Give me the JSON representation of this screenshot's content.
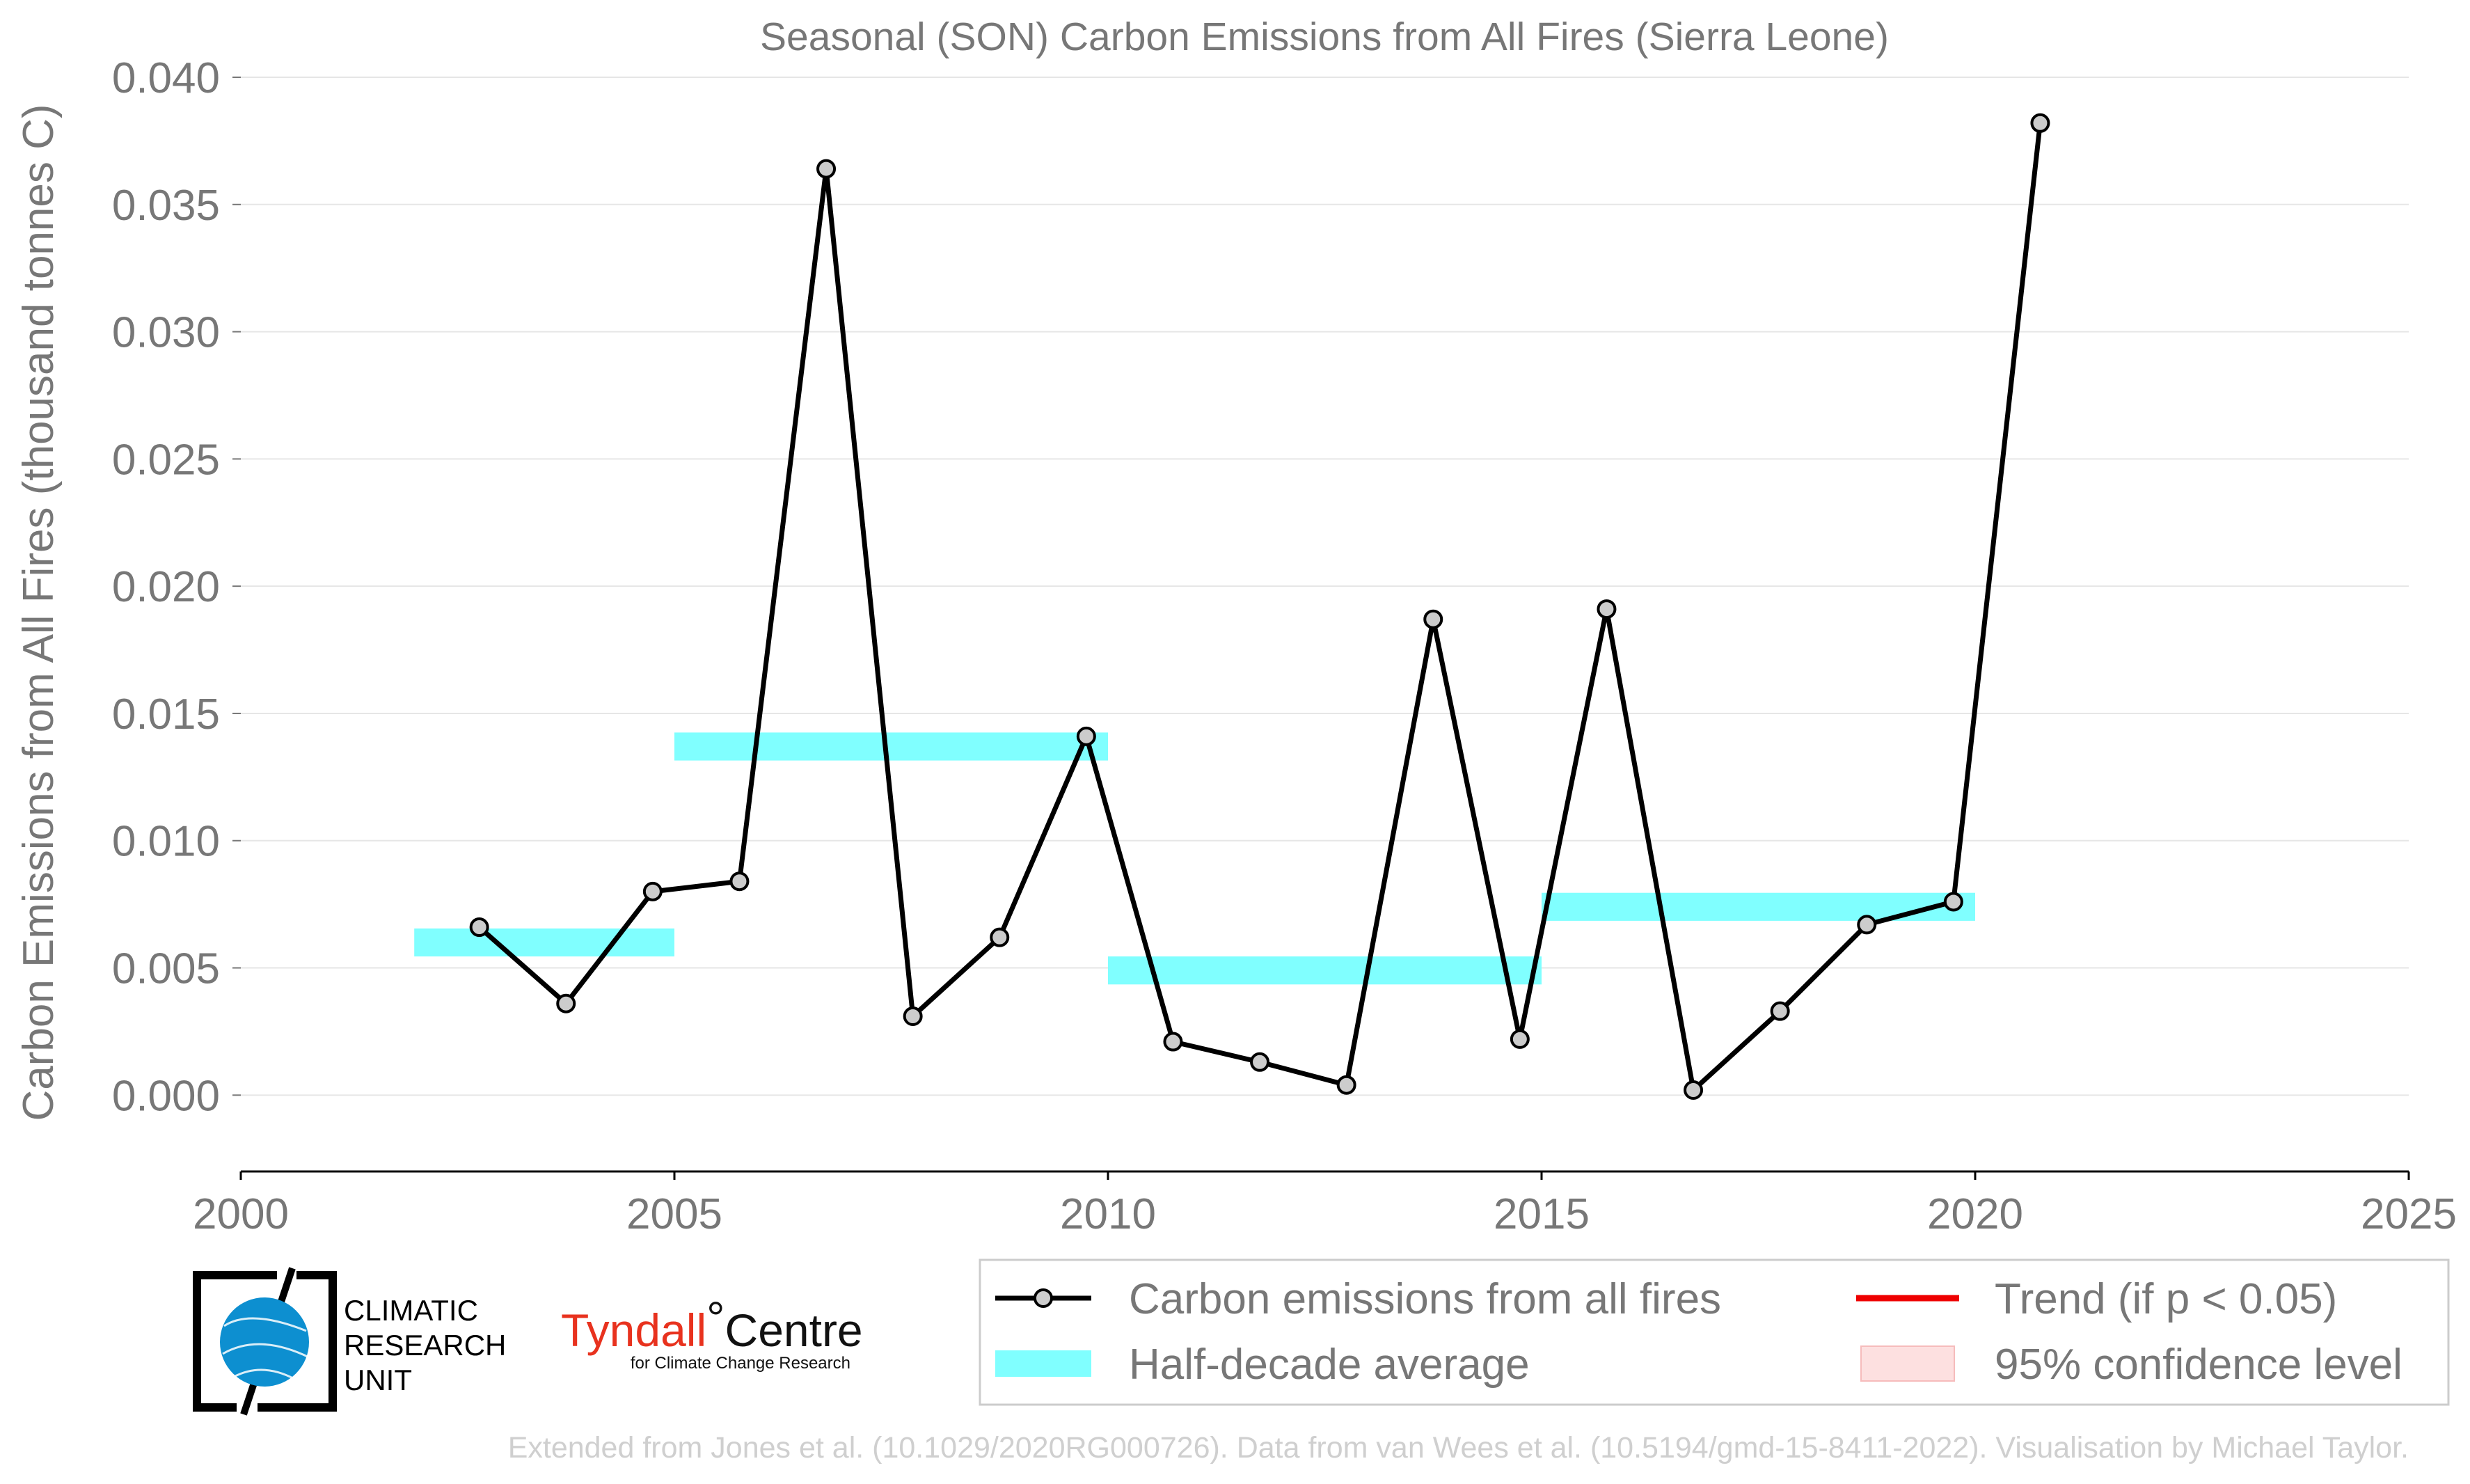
{
  "chart_data": {
    "type": "line",
    "title": "Seasonal (SON) Carbon Emissions from All Fires (Sierra Leone)",
    "xlabel": "",
    "ylabel": "Carbon Emissions from All Fires (thousand tonnes C)",
    "xlim": [
      2000,
      2025
    ],
    "ylim": [
      -0.003,
      0.04
    ],
    "x_ticks": [
      "2000",
      "2005",
      "2010",
      "2015",
      "2020",
      "2025"
    ],
    "x_tick_values": [
      2000,
      2005,
      2010,
      2015,
      2020,
      2025
    ],
    "y_ticks": [
      "0.000",
      "0.005",
      "0.010",
      "0.015",
      "0.020",
      "0.025",
      "0.030",
      "0.035",
      "0.040"
    ],
    "y_tick_values": [
      0,
      0.005,
      0.01,
      0.015,
      0.02,
      0.025,
      0.03,
      0.035,
      0.04
    ],
    "grid": "horizontal",
    "legend_position": "bottom-right",
    "series": [
      {
        "name": "Carbon emissions from all fires",
        "color": "#000000",
        "marker_fill": "#cccccc",
        "x": [
          2002.75,
          2003.75,
          2004.75,
          2005.75,
          2006.75,
          2007.75,
          2008.75,
          2009.75,
          2010.75,
          2011.75,
          2012.75,
          2013.75,
          2014.75,
          2015.75,
          2016.75,
          2017.75,
          2018.75,
          2019.75,
          2020.75
        ],
        "y": [
          0.0066,
          0.0036,
          0.008,
          0.0084,
          0.0364,
          0.0031,
          0.0062,
          0.0141,
          0.0021,
          0.0013,
          0.0004,
          0.0187,
          0.0022,
          0.0191,
          0.0002,
          0.0033,
          0.0067,
          0.0076,
          0.0382
        ]
      },
      {
        "name": "Half-decade average",
        "color": "#80ffff",
        "segments": [
          {
            "x0": 2002,
            "x1": 2005,
            "y": 0.006
          },
          {
            "x0": 2005,
            "x1": 2010,
            "y": 0.0137
          },
          {
            "x0": 2010,
            "x1": 2015,
            "y": 0.0049
          },
          {
            "x0": 2015,
            "x1": 2020,
            "y": 0.0074
          }
        ]
      }
    ],
    "legend": [
      {
        "label": "Carbon emissions from all fires",
        "kind": "line-marker",
        "color": "#000000"
      },
      {
        "label": "Half-decade average",
        "kind": "band",
        "color": "#80ffff"
      },
      {
        "label": "Trend (if p < 0.05)",
        "kind": "line",
        "color": "#ee0000"
      },
      {
        "label": "95% confidence level",
        "kind": "patch",
        "color": "#fde0e0"
      }
    ]
  },
  "logos": {
    "cru_text": [
      "CLIMATIC",
      "RESEARCH",
      "UNIT"
    ],
    "tyndall_main": "Tyndall",
    "tyndall_degree": "°",
    "tyndall_centre": "Centre",
    "tyndall_sub": "for Climate Change Research"
  },
  "footer": "Extended from Jones et al. (10.1029/2020RG000726). Data from van Wees et al. (10.5194/gmd-15-8411-2022). Visualisation by Michael Taylor."
}
